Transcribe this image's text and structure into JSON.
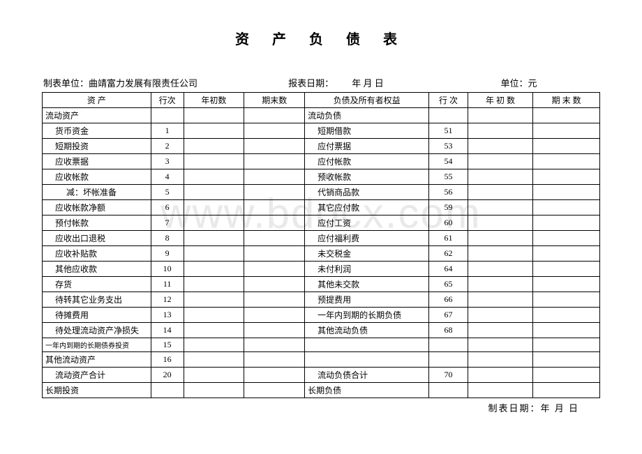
{
  "title": "资 产 负 债 表",
  "header": {
    "unit_label": "制表单位：",
    "unit_name": "曲靖富力发展有限责任公司",
    "date_label": "报表日期：",
    "date_value": "年  月  日",
    "currency_label": "单位：元"
  },
  "columns": {
    "c1": "资      产",
    "c2": "行次",
    "c3": "年初数",
    "c4": "期末数",
    "c5": "负债及所有者权益",
    "c6": "行  次",
    "c7": "年 初 数",
    "c8": "期 末 数"
  },
  "col_widths": {
    "c1": "140",
    "c2": "42",
    "c3": "78",
    "c4": "78",
    "c5": "160",
    "c6": "50",
    "c7": "84",
    "c8": "86"
  },
  "rows": [
    {
      "l": "流动资产",
      "ln": "",
      "li": 0,
      "r": "流动负债",
      "rn": "",
      "ri": 0
    },
    {
      "l": "货币资金",
      "ln": "1",
      "li": 1,
      "r": "短期借款",
      "rn": "51",
      "ri": 1
    },
    {
      "l": "短期投资",
      "ln": "2",
      "li": 1,
      "r": "应付票据",
      "rn": "53",
      "ri": 1
    },
    {
      "l": "应收票据",
      "ln": "3",
      "li": 1,
      "r": "应付帐款",
      "rn": "54",
      "ri": 1
    },
    {
      "l": "应收帐款",
      "ln": "4",
      "li": 1,
      "r": "预收帐款",
      "rn": "55",
      "ri": 1
    },
    {
      "l": "减：坏帐准备",
      "ln": "5",
      "li": 2,
      "r": "代销商品款",
      "rn": "56",
      "ri": 1
    },
    {
      "l": "应收帐款净额",
      "ln": "6",
      "li": 1,
      "r": "其它应付款",
      "rn": "59",
      "ri": 1
    },
    {
      "l": "预付帐款",
      "ln": "7",
      "li": 1,
      "r": "应付工资",
      "rn": "60",
      "ri": 1
    },
    {
      "l": "应收出口退税",
      "ln": "8",
      "li": 1,
      "r": "应付福利费",
      "rn": "61",
      "ri": 1
    },
    {
      "l": "应收补贴款",
      "ln": "9",
      "li": 1,
      "r": "未交税金",
      "rn": "62",
      "ri": 1
    },
    {
      "l": "其他应收款",
      "ln": "10",
      "li": 1,
      "r": "未付利润",
      "rn": "64",
      "ri": 1
    },
    {
      "l": "存货",
      "ln": "11",
      "li": 1,
      "r": "其他未交款",
      "rn": "65",
      "ri": 1
    },
    {
      "l": "待转其它业务支出",
      "ln": "12",
      "li": 1,
      "r": "预提费用",
      "rn": "66",
      "ri": 1
    },
    {
      "l": "待摊费用",
      "ln": "13",
      "li": 1,
      "r": "一年内到期的长期负债",
      "rn": "67",
      "ri": 1
    },
    {
      "l": "待处理流动资产净损失",
      "ln": "14",
      "li": 1,
      "r": "其他流动负债",
      "rn": "68",
      "ri": 1
    },
    {
      "l": "一年内到期的长期债券投资",
      "ln": "15",
      "li": 0,
      "ls": true,
      "r": "",
      "rn": "",
      "ri": 0
    },
    {
      "l": "其他流动资产",
      "ln": "16",
      "li": 0,
      "r": "",
      "rn": "",
      "ri": 0
    },
    {
      "l": "流动资产合计",
      "ln": "20",
      "li": 1,
      "r": "流动负债合计",
      "rn": "70",
      "ri": 1
    },
    {
      "l": "长期投资",
      "ln": "",
      "li": 0,
      "r": "长期负债",
      "rn": "",
      "ri": 0
    }
  ],
  "footer": {
    "label": "制表日期：",
    "value": "年    月    日"
  },
  "watermark": "www.bdocx.com"
}
